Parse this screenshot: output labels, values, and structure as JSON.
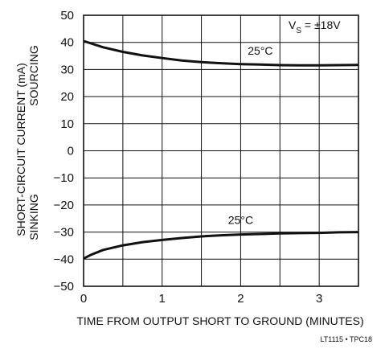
{
  "chart_data": {
    "type": "line",
    "title": "",
    "xlabel": "TIME FROM OUTPUT SHORT TO GROUND (MINUTES)",
    "ylabel_line1": "SHORT-CIRCUIT CURRENT (mA)",
    "ylabel_line2_top": "SOURCING",
    "ylabel_line2_bottom": "SINKING",
    "xlim": [
      0,
      3.5
    ],
    "ylim": [
      -50,
      50
    ],
    "xticks": [
      0,
      1,
      2,
      3
    ],
    "xtick_labels": [
      "0",
      "1",
      "2",
      "3"
    ],
    "yticks": [
      50,
      40,
      30,
      20,
      10,
      0,
      -10,
      -20,
      -30,
      -40,
      -50
    ],
    "ytick_labels": [
      "50",
      "40",
      "30",
      "20",
      "10",
      "0",
      "−10",
      "−20",
      "−30",
      "−40",
      "−50"
    ],
    "grid": true,
    "condition_label": "V",
    "condition_subscript": "S",
    "condition_value": " = ±18V",
    "series": [
      {
        "name": "25°C",
        "x": [
          0,
          0.25,
          0.5,
          0.75,
          1.0,
          1.25,
          1.5,
          1.75,
          2.0,
          2.25,
          2.5,
          2.75,
          3.0,
          3.25,
          3.5
        ],
        "y": [
          40.5,
          38.2,
          36.5,
          35.2,
          34.2,
          33.3,
          32.7,
          32.3,
          32.0,
          31.8,
          31.6,
          31.5,
          31.5,
          31.6,
          31.7
        ]
      },
      {
        "name": "25°C",
        "x": [
          0,
          0.1,
          0.25,
          0.5,
          0.75,
          1.0,
          1.25,
          1.5,
          1.75,
          2.0,
          2.25,
          2.5,
          2.75,
          3.0,
          3.25,
          3.5
        ],
        "y": [
          -39.8,
          -38.3,
          -36.6,
          -34.9,
          -33.7,
          -32.9,
          -32.2,
          -31.6,
          -31.2,
          -30.9,
          -30.7,
          -30.5,
          -30.4,
          -30.3,
          -30.1,
          -30.0
        ]
      }
    ],
    "footnote": "LT1115 • TPC18"
  }
}
